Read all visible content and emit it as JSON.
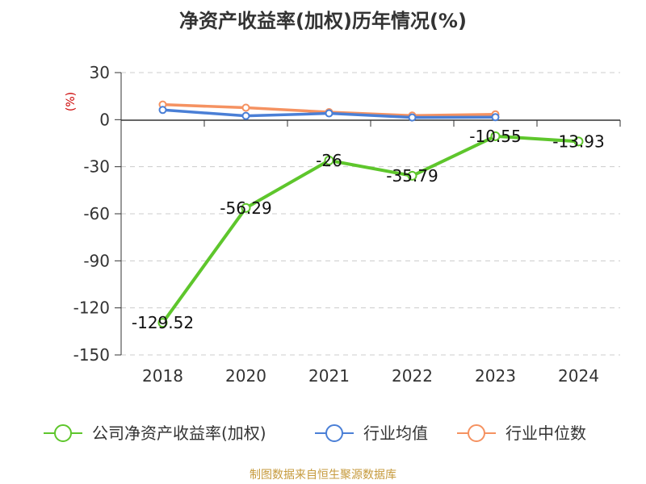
{
  "title": "净资产收益率(加权)历年情况(%)",
  "source": "制图数据来自恒生聚源数据库",
  "chart_data": {
    "type": "line",
    "title": "净资产收益率(加权)历年情况(%)",
    "ylabel": "(%)",
    "xlabel": "",
    "categories": [
      "2018",
      "2020",
      "2021",
      "2022",
      "2023",
      "2024"
    ],
    "ylim": [
      -150,
      30
    ],
    "yticks": [
      30,
      0,
      -30,
      -60,
      -90,
      -120,
      -150
    ],
    "grid": true,
    "legend_position": "bottom",
    "series": [
      {
        "name": "公司净资产收益率(加权)",
        "color": "#5ec62c",
        "values": [
          -129.52,
          -56.29,
          -26,
          -35.79,
          -10.55,
          -13.93
        ],
        "labels": [
          "-129.52",
          "-56.29",
          "-26",
          "-35.79",
          "-10.55",
          "-13.93"
        ]
      },
      {
        "name": "行业均值",
        "color": "#4a7fd6",
        "values": [
          6.2,
          2.4,
          4.0,
          1.4,
          1.6,
          null
        ]
      },
      {
        "name": "行业中位数",
        "color": "#f59261",
        "values": [
          9.6,
          7.6,
          4.8,
          2.6,
          3.4,
          null
        ]
      }
    ]
  }
}
